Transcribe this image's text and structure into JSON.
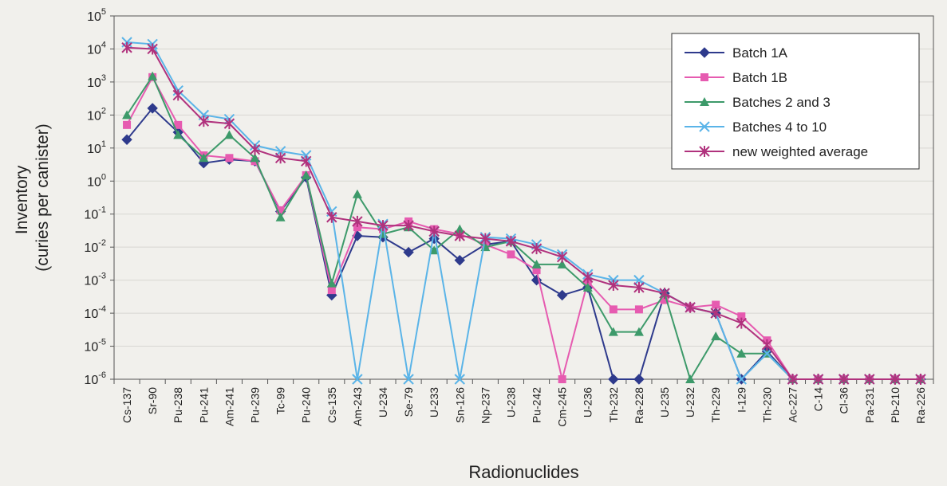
{
  "chart_data": {
    "type": "line",
    "xlabel": "Radionuclides",
    "ylabel_line1": "Inventory",
    "ylabel_line2": "(curies per canister)",
    "y_scale": "log",
    "ylim": [
      1e-06,
      100000.0
    ],
    "y_ticks": [
      {
        "base": "10",
        "exp": "5",
        "value": 100000.0
      },
      {
        "base": "10",
        "exp": "4",
        "value": 10000.0
      },
      {
        "base": "10",
        "exp": "3",
        "value": 1000.0
      },
      {
        "base": "10",
        "exp": "2",
        "value": 100.0
      },
      {
        "base": "10",
        "exp": "1",
        "value": 10.0
      },
      {
        "base": "10",
        "exp": "0",
        "value": 1.0
      },
      {
        "base": "10",
        "exp": "-1",
        "value": 0.1
      },
      {
        "base": "10",
        "exp": "-2",
        "value": 0.01
      },
      {
        "base": "10",
        "exp": "-3",
        "value": 0.001
      },
      {
        "base": "10",
        "exp": "-4",
        "value": 0.0001
      },
      {
        "base": "10",
        "exp": "-5",
        "value": 1e-05
      },
      {
        "base": "10",
        "exp": "-6",
        "value": 1e-06
      }
    ],
    "grid": "horizontal",
    "legend_position": "top-right",
    "categories": [
      "Cs-137",
      "Sr-90",
      "Pu-238",
      "Pu-241",
      "Am-241",
      "Pu-239",
      "Tc-99",
      "Pu-240",
      "Cs-135",
      "Am-243",
      "U-234",
      "Se-79",
      "U-233",
      "Sn-126",
      "Np-237",
      "U-238",
      "Pu-242",
      "Cm-245",
      "U-236",
      "Th-232",
      "Ra-228",
      "U-235",
      "U-232",
      "Th-229",
      "I-129",
      "Th-230",
      "Ac-227",
      "C-14",
      "Cl-36",
      "Pa-231",
      "Pb-210",
      "Ra-226"
    ],
    "series": [
      {
        "name": "Batch 1A",
        "color": "#2e3a8c",
        "marker": "diamond",
        "values": [
          18,
          160,
          30,
          3.5,
          4.5,
          4,
          0.12,
          1.3,
          0.00035,
          0.022,
          0.02,
          0.007,
          0.018,
          0.004,
          0.012,
          0.015,
          0.001,
          0.00035,
          0.0006,
          1e-06,
          1e-06,
          0.0004,
          0.00015,
          0.0001,
          1e-06,
          7e-06,
          1e-06,
          1e-06,
          1e-06,
          1e-06,
          1e-06,
          1e-06
        ]
      },
      {
        "name": "Batch 1B",
        "color": "#e65bb0",
        "marker": "square",
        "values": [
          50,
          1400,
          50,
          6,
          5,
          4,
          0.13,
          1.5,
          0.0005,
          0.04,
          0.035,
          0.06,
          0.035,
          0.025,
          0.012,
          0.006,
          0.002,
          1e-06,
          0.0009,
          0.00013,
          0.00013,
          0.00025,
          0.00015,
          0.00018,
          8e-05,
          1.5e-05,
          1e-06,
          1e-06,
          1e-06,
          1e-06,
          1e-06,
          1e-06
        ]
      },
      {
        "name": "Batches 2 and 3",
        "color": "#3d9a6a",
        "marker": "triangle",
        "values": [
          100,
          1500,
          25,
          5,
          25,
          5,
          0.08,
          1.5,
          0.0008,
          0.4,
          0.025,
          0.04,
          0.008,
          0.035,
          0.01,
          0.015,
          0.003,
          0.003,
          0.0006,
          2.7e-05,
          2.7e-05,
          0.0004,
          1e-06,
          2e-05,
          6e-06,
          6e-06,
          1e-06,
          1e-06,
          1e-06,
          1e-06,
          1e-06,
          1e-06
        ]
      },
      {
        "name": "Batches 4 to 10",
        "color": "#5ab4e8",
        "marker": "x",
        "values": [
          16000,
          14000,
          550,
          100,
          75,
          12,
          8,
          6,
          0.12,
          1e-06,
          0.05,
          1e-06,
          0.03,
          1e-06,
          0.02,
          0.018,
          0.012,
          0.006,
          0.0015,
          0.001,
          0.001,
          0.0004,
          0.00015,
          0.0001,
          1e-06,
          6e-06,
          1e-06,
          1e-06,
          1e-06,
          1e-06,
          1e-06,
          1e-06
        ]
      },
      {
        "name": "new weighted average",
        "color": "#b0327d",
        "marker": "star",
        "values": [
          11000,
          10000,
          400,
          65,
          55,
          9,
          5,
          4,
          0.08,
          0.06,
          0.045,
          0.045,
          0.03,
          0.022,
          0.018,
          0.015,
          0.009,
          0.005,
          0.0012,
          0.0007,
          0.0006,
          0.0004,
          0.00015,
          0.0001,
          5e-05,
          1.1e-05,
          1e-06,
          1e-06,
          1e-06,
          1e-06,
          1e-06,
          1e-06
        ]
      }
    ]
  }
}
